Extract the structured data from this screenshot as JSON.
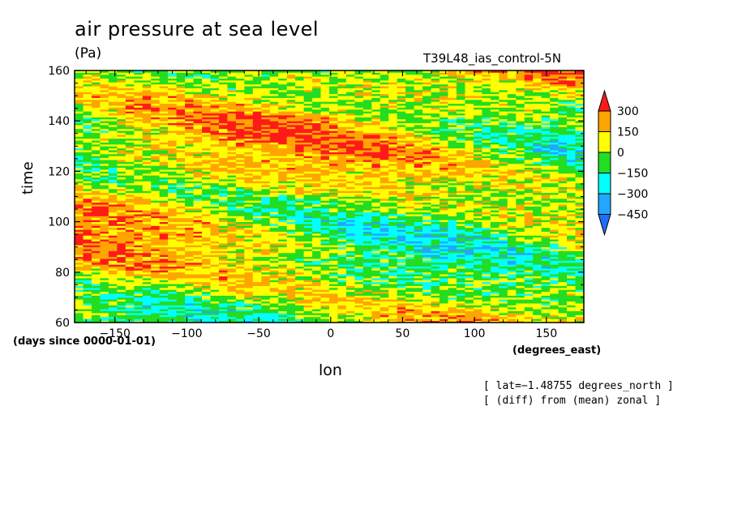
{
  "chart_data": {
    "type": "heatmap",
    "title": "air pressure at sea level",
    "units": "(Pa)",
    "experiment": "T39L48_ias_control-5N",
    "xlabel": "lon",
    "ylabel": "time",
    "x_units": "(degrees_east)",
    "y_units": "(days since 0000-01-01)",
    "xlim": [
      -178,
      176
    ],
    "ylim": [
      60,
      160
    ],
    "x_ticks": [
      -150,
      -100,
      -50,
      0,
      50,
      100,
      150
    ],
    "y_ticks": [
      60,
      80,
      100,
      120,
      140,
      160
    ],
    "x_tick_labels": [
      "−150",
      "−100",
      "−50",
      "0",
      "50",
      "100",
      "150"
    ],
    "y_tick_labels": [
      "60",
      "80",
      "100",
      "120",
      "140",
      "160"
    ],
    "colorbar": {
      "levels": [
        -450,
        -300,
        -150,
        0,
        150,
        300
      ],
      "labels": [
        "−450",
        "−300",
        "−150",
        "0",
        "150",
        "300"
      ],
      "colors": [
        "#1f6fff",
        "#22a6ff",
        "#00ffff",
        "#22dd22",
        "#ffff00",
        "#ffa500",
        "#ff1a1a"
      ],
      "extend": "both"
    },
    "annotations": [
      "[ lat=−1.48755 degrees_north ]",
      "[ (diff) from (mean) zonal ]"
    ]
  }
}
